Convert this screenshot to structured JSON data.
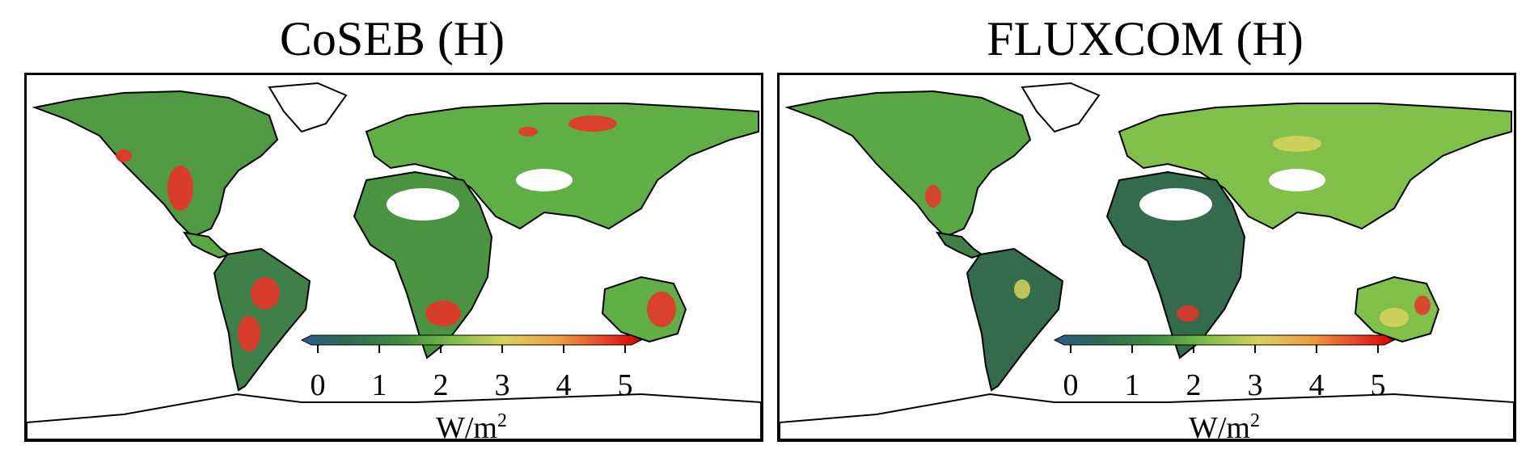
{
  "panels": [
    {
      "title": "CoSEB (H)",
      "colorbar": {
        "ticks": [
          "0",
          "1",
          "2",
          "3",
          "4",
          "5"
        ],
        "unit_base": "W/m",
        "unit_exp": "2"
      }
    },
    {
      "title": "FLUXCOM (H)",
      "colorbar": {
        "ticks": [
          "0",
          "1",
          "2",
          "3",
          "4",
          "5"
        ],
        "unit_base": "W/m",
        "unit_exp": "2"
      }
    }
  ],
  "colormap": [
    "#2b5d8c",
    "#2f6b4f",
    "#3e8e3e",
    "#7fbf4a",
    "#d8d25a",
    "#f0a040",
    "#e84a2a",
    "#d40000"
  ],
  "land_colors": {
    "low": "#2f6b4f",
    "mid": "#5fae46",
    "high": "#e8352a",
    "no_data": "#ffffff"
  }
}
